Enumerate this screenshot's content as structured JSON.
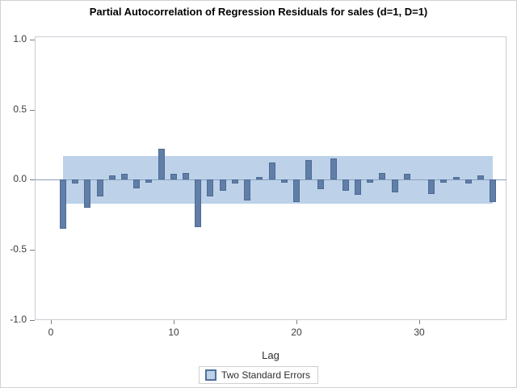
{
  "title": "Partial Autocorrelation of Regression Residuals for sales (d=1, D=1)",
  "legend": {
    "label": "Two Standard Errors"
  },
  "colors": {
    "bar_fill": "#617ea7",
    "bar_border": "#4d6b96",
    "band_fill": "#bdd2e9",
    "zero_line": "#87a1bd",
    "frame_border": "#c9ced4",
    "tick_text": "#3b3b3b",
    "title_text": "#000000"
  },
  "chart_data": {
    "type": "bar",
    "title": "Partial Autocorrelation of Regression Residuals for sales (d=1, D=1)",
    "xlabel": "Lag",
    "ylabel": "",
    "ylim": [
      -1.0,
      1.0
    ],
    "xlim": [
      -1.3,
      37.1
    ],
    "grid": false,
    "legend_position": "bottom-center",
    "ytick_values": [
      1.0,
      0.5,
      0.0,
      -0.5,
      -1.0
    ],
    "ytick_labels": [
      "1.0",
      "0.5",
      "0.0",
      "-0.5",
      "-1.0"
    ],
    "xtick_values": [
      0,
      10,
      20,
      30
    ],
    "xtick_labels": [
      "0",
      "10",
      "20",
      "30"
    ],
    "confidence_band": {
      "label": "Two Standard Errors",
      "low": -0.17,
      "high": 0.17,
      "x_start": 1,
      "x_end": 36
    },
    "series": [
      {
        "name": "Partial Autocorrelation",
        "x": [
          1,
          2,
          3,
          4,
          5,
          6,
          7,
          8,
          9,
          10,
          11,
          12,
          13,
          14,
          15,
          16,
          17,
          18,
          19,
          20,
          21,
          22,
          23,
          24,
          25,
          26,
          27,
          28,
          29,
          30,
          31,
          32,
          33,
          34,
          35,
          36
        ],
        "values": [
          -0.35,
          -0.03,
          -0.2,
          -0.12,
          0.03,
          0.04,
          -0.06,
          -0.02,
          0.22,
          0.04,
          0.05,
          -0.34,
          -0.12,
          -0.08,
          -0.03,
          -0.15,
          0.02,
          0.12,
          -0.02,
          -0.16,
          0.14,
          -0.07,
          0.15,
          -0.08,
          -0.11,
          -0.02,
          0.05,
          -0.09,
          0.04,
          0.0,
          -0.1,
          -0.02,
          0.02,
          -0.03,
          0.03,
          -0.16
        ]
      }
    ]
  }
}
